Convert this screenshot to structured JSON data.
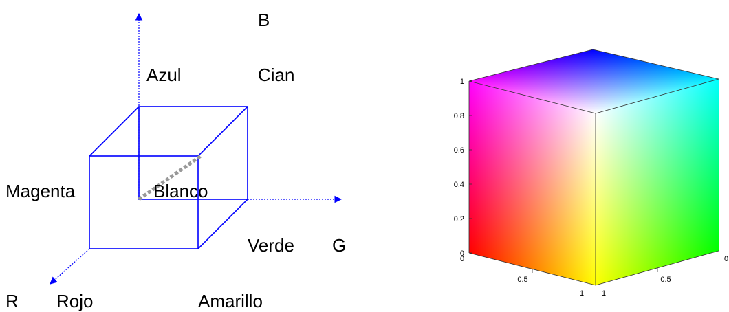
{
  "diagram": {
    "labels": {
      "b_axis": "B",
      "blue": "Azul",
      "cyan": "Cian",
      "magenta": "Magenta",
      "white": "Blanco",
      "green": "Verde",
      "g_axis": "G",
      "r_axis": "R",
      "red": "Rojo",
      "yellow": "Amarillo"
    }
  },
  "cube": {
    "vertical_ticks": [
      "1",
      "0.8",
      "0.6",
      "0.4",
      "0.2",
      "0"
    ],
    "left_ticks": [
      "0",
      "0.5",
      "1"
    ],
    "right_ticks": [
      "1",
      "0.5",
      "0"
    ]
  }
}
